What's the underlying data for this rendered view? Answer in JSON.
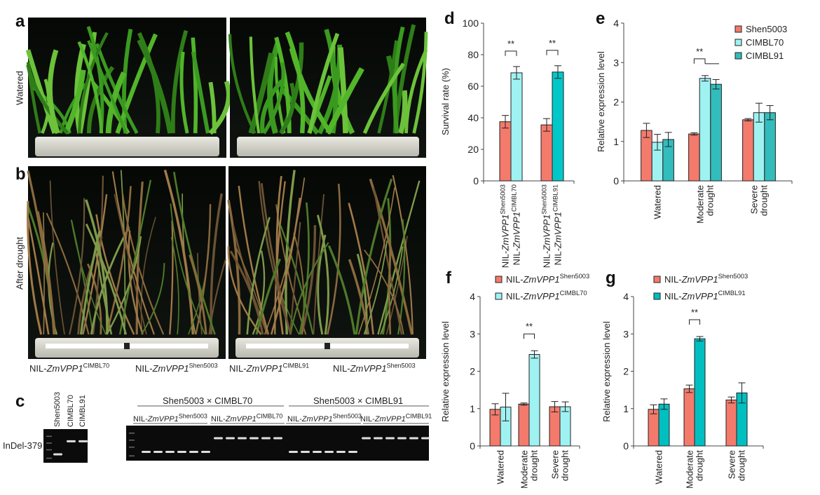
{
  "panels": {
    "a": "a",
    "b": "b",
    "c": "c",
    "d": "d",
    "e": "e",
    "f": "f",
    "g": "g"
  },
  "photos": {
    "row_a_label": "Watered",
    "row_b_label": "After drought",
    "captions": [
      {
        "prefix": "NIL-",
        "gene": "ZmVPP1",
        "allele": "CIMBL70"
      },
      {
        "prefix": "NIL-",
        "gene": "ZmVPP1",
        "allele": "Shen5003"
      },
      {
        "prefix": "NIL-",
        "gene": "ZmVPP1",
        "allele": "CIMBL91"
      },
      {
        "prefix": "NIL-",
        "gene": "ZmVPP1",
        "allele": "Shen5003"
      }
    ]
  },
  "gel": {
    "marker": "InDel-379",
    "parent_lanes": [
      "Shen5003",
      "CIMBL70",
      "CIMBL91"
    ],
    "parent_bands": [
      "low",
      "high",
      "high"
    ],
    "cross_1": "Shen5003 × CIMBL70",
    "cross_2": "Shen5003 × CIMBL91",
    "groups": [
      {
        "prefix": "NIL-",
        "gene": "ZmVPP1",
        "allele": "Shen5003",
        "band": "low"
      },
      {
        "prefix": "NIL-",
        "gene": "ZmVPP1",
        "allele": "CIMBL70",
        "band": "high"
      },
      {
        "prefix": "NIL-",
        "gene": "ZmVPP1",
        "allele": "Shen5003",
        "band": "low"
      },
      {
        "prefix": "NIL-",
        "gene": "ZmVPP1",
        "allele": "CIMBL91",
        "band": "high"
      }
    ]
  },
  "colors": {
    "shen5003": "#f47a6c",
    "cimbl70": "#9ff2f2",
    "cimbl91": "#2fbcbc",
    "cimbl91_g": "#00bfc0"
  },
  "chart_data": [
    {
      "id": "d",
      "type": "bar",
      "ylabel": "Survival rate (%)",
      "ylim": [
        0,
        100
      ],
      "yticks": [
        0,
        20,
        40,
        60,
        80,
        100
      ],
      "categories": [
        {
          "prefix": "NIL-",
          "gene": "ZmVPP1",
          "allele": "Shen5003"
        },
        {
          "prefix": "NIL-",
          "gene": "ZmVPP1",
          "allele": "CIMBL70"
        },
        {
          "prefix": "NIL-",
          "gene": "ZmVPP1",
          "allele": "Shen5003"
        },
        {
          "prefix": "NIL-",
          "gene": "ZmVPP1",
          "allele": "CIMBL91"
        }
      ],
      "values": [
        37.5,
        68.5,
        35.5,
        69
      ],
      "errors": [
        4,
        4,
        4,
        4
      ],
      "bar_colors": [
        "#f47a6c",
        "#9ff2f2",
        "#f47a6c",
        "#00c8c8"
      ],
      "significance": [
        {
          "pair": [
            0,
            1
          ],
          "label": "**"
        },
        {
          "pair": [
            2,
            3
          ],
          "label": "**"
        }
      ]
    },
    {
      "id": "e",
      "type": "bar",
      "ylabel": "Relative expression level",
      "ylim": [
        0,
        4
      ],
      "yticks": [
        0,
        1,
        2,
        3,
        4
      ],
      "categories": [
        "Watered",
        "Moderate drought",
        "Severe drought"
      ],
      "legend": "top-right",
      "series": [
        {
          "name": "Shen5003",
          "color": "#f47a6c",
          "values": [
            1.28,
            1.19,
            1.55
          ],
          "errors": [
            0.18,
            0.03,
            0.03
          ]
        },
        {
          "name": "CIMBL70",
          "color": "#9ff2f2",
          "values": [
            0.98,
            2.6,
            1.73
          ],
          "errors": [
            0.2,
            0.07,
            0.24
          ]
        },
        {
          "name": "CIMBL91",
          "color": "#33bcbc",
          "values": [
            1.05,
            2.45,
            1.73
          ],
          "errors": [
            0.18,
            0.12,
            0.18
          ]
        }
      ],
      "significance": [
        {
          "category": 1,
          "label": "**"
        }
      ]
    },
    {
      "id": "f",
      "type": "bar",
      "ylabel": "Relative expression level",
      "ylim": [
        0,
        4
      ],
      "yticks": [
        0,
        1,
        2,
        3,
        4
      ],
      "categories": [
        "Watered",
        "Moderate drought",
        "Severe drought"
      ],
      "legend": "top",
      "series": [
        {
          "name": {
            "prefix": "NIL-",
            "gene": "ZmVPP1",
            "allele": "Shen5003"
          },
          "color": "#f47a6c",
          "values": [
            0.98,
            1.12,
            1.05
          ],
          "errors": [
            0.15,
            0.03,
            0.14
          ]
        },
        {
          "name": {
            "prefix": "NIL-",
            "gene": "ZmVPP1",
            "allele": "CIMBL70"
          },
          "color": "#9ff2f2",
          "values": [
            1.04,
            2.45,
            1.05
          ],
          "errors": [
            0.37,
            0.1,
            0.13
          ]
        }
      ],
      "significance": [
        {
          "category": 1,
          "label": "**"
        }
      ]
    },
    {
      "id": "g",
      "type": "bar",
      "ylabel": "Relative expression level",
      "ylim": [
        0,
        4
      ],
      "yticks": [
        0,
        1,
        2,
        3,
        4
      ],
      "categories": [
        "Watered",
        "Moderate drought",
        "Severe drought"
      ],
      "legend": "top",
      "series": [
        {
          "name": {
            "prefix": "NIL-",
            "gene": "ZmVPP1",
            "allele": "Shen5003"
          },
          "color": "#f47a6c",
          "values": [
            0.98,
            1.53,
            1.23
          ],
          "errors": [
            0.12,
            0.1,
            0.08
          ]
        },
        {
          "name": {
            "prefix": "NIL-",
            "gene": "ZmVPP1",
            "allele": "CIMBL91"
          },
          "color": "#00bfc0",
          "values": [
            1.12,
            2.87,
            1.42
          ],
          "errors": [
            0.14,
            0.06,
            0.27
          ]
        }
      ],
      "significance": [
        {
          "category": 1,
          "label": "**"
        }
      ]
    }
  ]
}
